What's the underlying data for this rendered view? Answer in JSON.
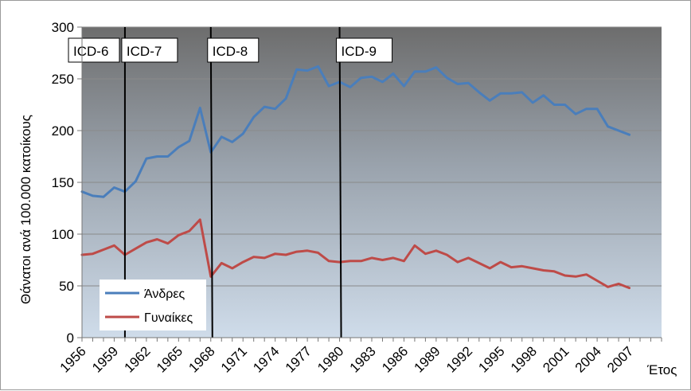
{
  "chart_data": {
    "type": "line",
    "title": "",
    "xlabel": "Έτος",
    "ylabel": "Θάνατοι ανά 100.000 κατοίκους",
    "ylim": [
      0,
      300
    ],
    "y_ticks": [
      "0",
      "50",
      "100",
      "150",
      "200",
      "250",
      "300"
    ],
    "x_range": [
      1956,
      2010
    ],
    "x_ticks": [
      "1956",
      "1959",
      "1962",
      "1965",
      "1968",
      "1971",
      "1974",
      "1977",
      "1980",
      "1983",
      "1986",
      "1989",
      "1992",
      "1995",
      "1998",
      "2001",
      "2004",
      "2007"
    ],
    "grid": true,
    "legend_position": "bottom-left",
    "x": [
      1956,
      1957,
      1958,
      1959,
      1960,
      1961,
      1962,
      1963,
      1964,
      1965,
      1966,
      1967,
      1968,
      1969,
      1970,
      1971,
      1972,
      1973,
      1974,
      1975,
      1976,
      1977,
      1978,
      1979,
      1980,
      1981,
      1982,
      1983,
      1984,
      1985,
      1986,
      1987,
      1988,
      1989,
      1990,
      1991,
      1992,
      1993,
      1994,
      1995,
      1996,
      1997,
      1998,
      1999,
      2000,
      2001,
      2002,
      2003,
      2004,
      2005,
      2006,
      2007
    ],
    "series": [
      {
        "name": "Άνδρες",
        "color": "#4a7ebb",
        "values": [
          141,
          137,
          136,
          145,
          141,
          151,
          173,
          175,
          175,
          184,
          190,
          222,
          179,
          194,
          189,
          197,
          213,
          223,
          221,
          231,
          259,
          258,
          262,
          243,
          247,
          242,
          251,
          252,
          247,
          255,
          243,
          257,
          257,
          261,
          251,
          245,
          246,
          237,
          229,
          236,
          236,
          237,
          227,
          234,
          225,
          225,
          216,
          221,
          221,
          204,
          200,
          196
        ]
      },
      {
        "name": "Γυναίκες",
        "color": "#be4b48",
        "values": [
          80,
          81,
          85,
          89,
          80,
          86,
          92,
          95,
          91,
          99,
          103,
          114,
          59,
          72,
          67,
          73,
          78,
          77,
          81,
          80,
          83,
          84,
          82,
          74,
          73,
          74,
          74,
          77,
          75,
          77,
          74,
          89,
          81,
          84,
          80,
          73,
          77,
          72,
          67,
          73,
          68,
          69,
          67,
          65,
          64,
          60,
          59,
          61,
          55,
          49,
          52,
          48
        ]
      }
    ],
    "annotations": [
      {
        "label": "ICD-6",
        "x": 1956.0
      },
      {
        "label": "ICD-7",
        "x": 1960.0
      },
      {
        "label": "ICD-8",
        "x": 1968.0
      },
      {
        "label": "ICD-9",
        "x": 1980.0
      }
    ],
    "divider_years": [
      1960.0,
      1968.0,
      1980.0
    ]
  }
}
